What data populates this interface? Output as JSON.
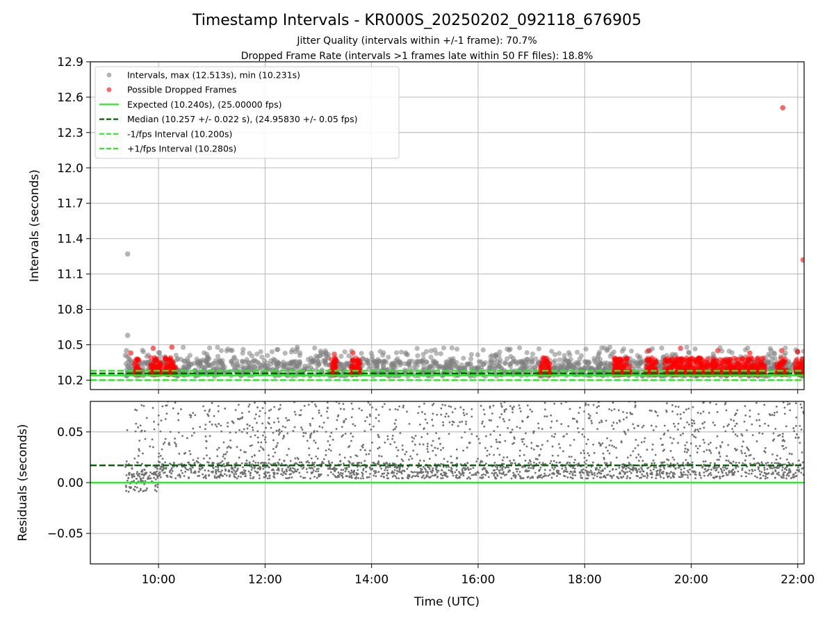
{
  "chart_data": [
    {
      "type": "scatter",
      "panel": "top",
      "title": "Timestamp Intervals - KR000S_20250202_092118_676905",
      "subtitle_lines": [
        "Jitter Quality (intervals within +/-1 frame): 70.7%",
        "Dropped Frame Rate (intervals >1 frames late within 50 FF files): 18.8%"
      ],
      "xlabel": "",
      "ylabel": "Intervals (seconds)",
      "xlim_hours": [
        8.72,
        22.12
      ],
      "ylim": [
        10.12,
        12.9
      ],
      "yticks": [
        10.2,
        10.5,
        10.8,
        11.1,
        11.4,
        11.7,
        12.0,
        12.3,
        12.6,
        12.9
      ],
      "ytick_labels": [
        "10.2",
        "10.5",
        "10.8",
        "11.1",
        "11.4",
        "11.7",
        "12.0",
        "12.3",
        "12.6",
        "12.9"
      ],
      "xticks_hours": [
        10,
        12,
        14,
        16,
        18,
        20,
        22
      ],
      "grid": true,
      "legend_position": "upper-left",
      "series": [
        {
          "name": "Intervals, max (12.513s), min (10.231s)",
          "kind": "scatter",
          "color": "#808080",
          "points": [
            [
              9.42,
              11.27
            ],
            [
              9.42,
              10.58
            ],
            [
              9.4,
              10.45
            ],
            [
              9.38,
              10.41
            ],
            [
              9.45,
              10.38
            ]
          ],
          "band": {
            "x_start": 9.38,
            "x_end": 22.12,
            "y_min": 10.231,
            "y_dense_max": 10.36,
            "y_sparse_max": 10.48
          }
        },
        {
          "name": "Possible Dropped Frames",
          "kind": "scatter",
          "color": "#ff0000",
          "points": [
            [
              21.72,
              12.51
            ],
            [
              22.1,
              11.22
            ],
            [
              9.48,
              10.43
            ],
            [
              9.9,
              10.47
            ],
            [
              10.25,
              10.48
            ],
            [
              13.3,
              10.42
            ],
            [
              13.65,
              10.43
            ],
            [
              19.2,
              10.45
            ],
            [
              19.8,
              10.47
            ],
            [
              20.5,
              10.45
            ],
            [
              21.1,
              10.43
            ],
            [
              21.7,
              10.45
            ],
            [
              22.0,
              10.44
            ]
          ],
          "clusters": [
            [
              9.55,
              9.65
            ],
            [
              9.85,
              10.05
            ],
            [
              10.12,
              10.32
            ],
            [
              13.25,
              13.35
            ],
            [
              13.62,
              13.78
            ],
            [
              17.15,
              17.35
            ],
            [
              18.55,
              18.85
            ],
            [
              19.15,
              19.35
            ],
            [
              19.5,
              21.4
            ],
            [
              21.6,
              21.8
            ],
            [
              21.95,
              22.12
            ]
          ]
        },
        {
          "name": "Expected (10.240s), (25.00000 fps)",
          "kind": "hline",
          "value": 10.24,
          "color": "#22ee22",
          "style": "solid"
        },
        {
          "name": "Median (10.257 +/- 0.022 s), (24.95830 +/- 0.05 fps)",
          "kind": "hline",
          "value": 10.257,
          "color": "#006400",
          "style": "dashed"
        },
        {
          "name": "-1/fps Interval (10.200s)",
          "kind": "hline",
          "value": 10.2,
          "color": "#22ee22",
          "style": "dashed"
        },
        {
          "name": "+1/fps Interval (10.280s)",
          "kind": "hline",
          "value": 10.28,
          "color": "#22ee22",
          "style": "dashed"
        }
      ]
    },
    {
      "type": "scatter",
      "panel": "bottom",
      "xlabel": "Time (UTC)",
      "ylabel": "Residuals (seconds)",
      "xlim_hours": [
        8.72,
        22.12
      ],
      "ylim": [
        -0.08,
        0.08
      ],
      "yticks": [
        -0.05,
        0.0,
        0.05
      ],
      "ytick_labels": [
        "−0.05",
        "0.00",
        "0.05"
      ],
      "xticks_hours": [
        10,
        12,
        14,
        16,
        18,
        20,
        22
      ],
      "xtick_labels": [
        "10:00",
        "12:00",
        "14:00",
        "16:00",
        "18:00",
        "20:00",
        "22:00"
      ],
      "grid": true,
      "series": [
        {
          "kind": "scatter",
          "color": "#707070",
          "band": {
            "x_start": 9.38,
            "x_end": 22.12,
            "dense_min": 0.004,
            "dense_max": 0.02,
            "sparse_max": 0.08
          }
        },
        {
          "kind": "hline",
          "value": 0.0,
          "color": "#22ee22",
          "style": "solid"
        },
        {
          "kind": "hline",
          "value": 0.017,
          "color": "#006400",
          "style": "dashed"
        }
      ]
    }
  ]
}
